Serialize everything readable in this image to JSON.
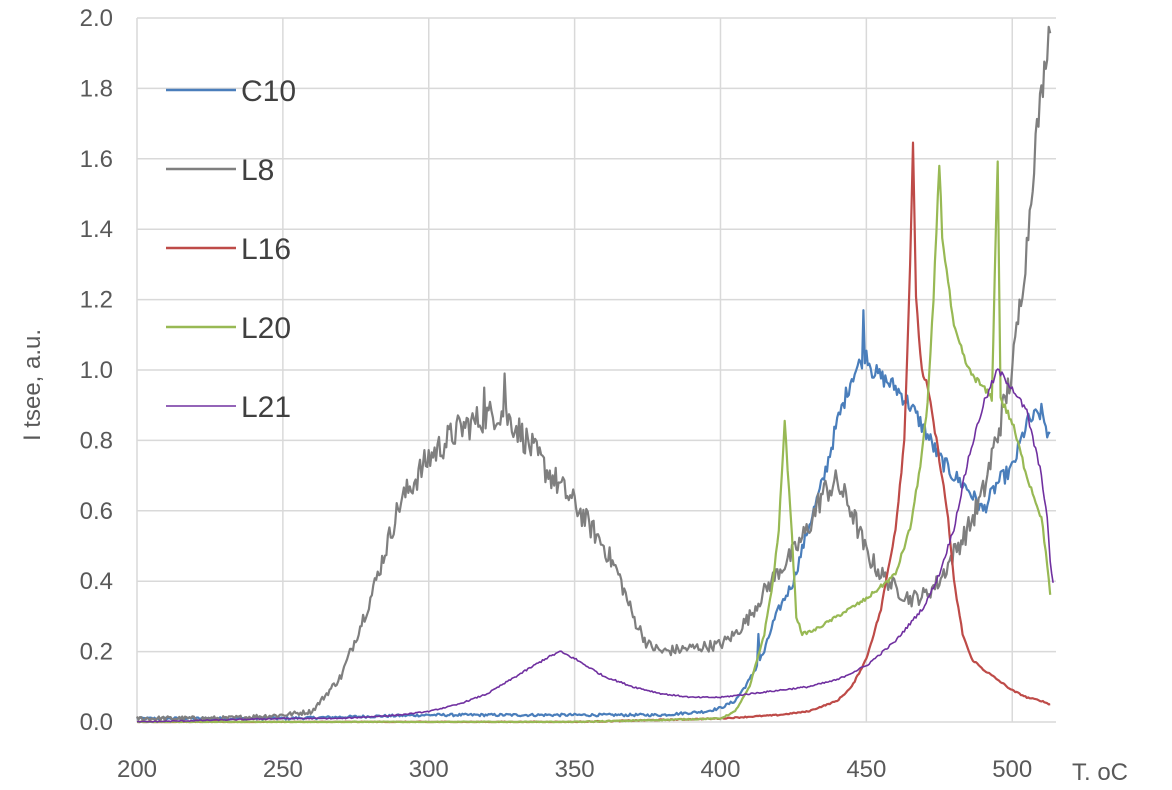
{
  "chart_data": {
    "type": "line",
    "title": "",
    "xlabel": "T. oC",
    "ylabel": "I tsee, a.u.",
    "xlim": [
      200,
      515
    ],
    "ylim": [
      0,
      2.0
    ],
    "x_ticks": [
      "200",
      "250",
      "300",
      "350",
      "400",
      "450",
      "500"
    ],
    "y_ticks": [
      "0.0",
      "0.2",
      "0.4",
      "0.6",
      "0.8",
      "1.0",
      "1.2",
      "1.4",
      "1.6",
      "1.8",
      "2.0"
    ],
    "grid": "vertical and horizontal major gridlines",
    "legend_position": "top-left",
    "series": [
      {
        "name": "C10",
        "color": "#4a7ebb",
        "points": [
          [
            200,
            0.01
          ],
          [
            250,
            0.01
          ],
          [
            300,
            0.02
          ],
          [
            350,
            0.02
          ],
          [
            380,
            0.02
          ],
          [
            395,
            0.03
          ],
          [
            400,
            0.04
          ],
          [
            405,
            0.06
          ],
          [
            410,
            0.12
          ],
          [
            415,
            0.2
          ],
          [
            418,
            0.28
          ],
          [
            420,
            0.32
          ],
          [
            425,
            0.4
          ],
          [
            430,
            0.55
          ],
          [
            435,
            0.68
          ],
          [
            440,
            0.85
          ],
          [
            445,
            0.98
          ],
          [
            450,
            1.05
          ],
          [
            452,
            1.0
          ],
          [
            455,
            0.98
          ],
          [
            460,
            0.95
          ],
          [
            465,
            0.9
          ],
          [
            470,
            0.83
          ],
          [
            475,
            0.75
          ],
          [
            480,
            0.7
          ],
          [
            485,
            0.66
          ],
          [
            490,
            0.6
          ],
          [
            495,
            0.68
          ],
          [
            500,
            0.72
          ],
          [
            505,
            0.85
          ],
          [
            510,
            0.88
          ],
          [
            513,
            0.8
          ]
        ],
        "spikes": [
          [
            449,
            1.17
          ],
          [
            413,
            0.25
          ]
        ]
      },
      {
        "name": "L8",
        "color": "#7f7f7f",
        "points": [
          [
            200,
            0.01
          ],
          [
            230,
            0.01
          ],
          [
            250,
            0.02
          ],
          [
            260,
            0.03
          ],
          [
            270,
            0.13
          ],
          [
            280,
            0.35
          ],
          [
            290,
            0.62
          ],
          [
            300,
            0.75
          ],
          [
            310,
            0.83
          ],
          [
            320,
            0.87
          ],
          [
            325,
            0.88
          ],
          [
            330,
            0.84
          ],
          [
            340,
            0.72
          ],
          [
            350,
            0.62
          ],
          [
            360,
            0.5
          ],
          [
            365,
            0.42
          ],
          [
            370,
            0.3
          ],
          [
            375,
            0.22
          ],
          [
            380,
            0.2
          ],
          [
            390,
            0.21
          ],
          [
            400,
            0.22
          ],
          [
            405,
            0.25
          ],
          [
            410,
            0.3
          ],
          [
            415,
            0.37
          ],
          [
            420,
            0.43
          ],
          [
            425,
            0.48
          ],
          [
            430,
            0.55
          ],
          [
            435,
            0.65
          ],
          [
            440,
            0.68
          ],
          [
            445,
            0.6
          ],
          [
            450,
            0.48
          ],
          [
            455,
            0.42
          ],
          [
            460,
            0.38
          ],
          [
            465,
            0.35
          ],
          [
            470,
            0.36
          ],
          [
            475,
            0.4
          ],
          [
            480,
            0.48
          ],
          [
            485,
            0.55
          ],
          [
            490,
            0.65
          ],
          [
            495,
            0.82
          ],
          [
            500,
            1.0
          ],
          [
            505,
            1.35
          ],
          [
            508,
            1.65
          ],
          [
            511,
            1.85
          ],
          [
            513,
            2.0
          ]
        ],
        "spikes": [
          [
            326,
            0.99
          ],
          [
            319,
            0.95
          ]
        ]
      },
      {
        "name": "L16",
        "color": "#be4b48",
        "points": [
          [
            200,
            0.0
          ],
          [
            300,
            0.0
          ],
          [
            350,
            0.0
          ],
          [
            400,
            0.01
          ],
          [
            420,
            0.02
          ],
          [
            430,
            0.03
          ],
          [
            440,
            0.06
          ],
          [
            445,
            0.1
          ],
          [
            450,
            0.18
          ],
          [
            455,
            0.32
          ],
          [
            460,
            0.55
          ],
          [
            463,
            0.8
          ],
          [
            465,
            1.3
          ],
          [
            466,
            1.65
          ],
          [
            467,
            1.2
          ],
          [
            469,
            1.0
          ],
          [
            471,
            0.95
          ],
          [
            473,
            0.85
          ],
          [
            475,
            0.75
          ],
          [
            478,
            0.58
          ],
          [
            480,
            0.4
          ],
          [
            483,
            0.25
          ],
          [
            486,
            0.18
          ],
          [
            490,
            0.15
          ],
          [
            495,
            0.12
          ],
          [
            500,
            0.09
          ],
          [
            505,
            0.07
          ],
          [
            510,
            0.06
          ],
          [
            513,
            0.05
          ]
        ],
        "spikes": []
      },
      {
        "name": "L20",
        "color": "#98b954",
        "points": [
          [
            200,
            0.0
          ],
          [
            300,
            0.0
          ],
          [
            350,
            0.0
          ],
          [
            400,
            0.01
          ],
          [
            405,
            0.03
          ],
          [
            410,
            0.1
          ],
          [
            415,
            0.25
          ],
          [
            418,
            0.4
          ],
          [
            420,
            0.55
          ],
          [
            422,
            0.85
          ],
          [
            424,
            0.6
          ],
          [
            426,
            0.3
          ],
          [
            428,
            0.25
          ],
          [
            432,
            0.26
          ],
          [
            440,
            0.3
          ],
          [
            450,
            0.35
          ],
          [
            460,
            0.42
          ],
          [
            465,
            0.55
          ],
          [
            468,
            0.7
          ],
          [
            471,
            0.9
          ],
          [
            473,
            1.2
          ],
          [
            475,
            1.59
          ],
          [
            476,
            1.38
          ],
          [
            478,
            1.25
          ],
          [
            480,
            1.12
          ],
          [
            485,
            1.0
          ],
          [
            490,
            0.95
          ],
          [
            493,
            0.92
          ],
          [
            495,
            1.6
          ],
          [
            496,
            0.92
          ],
          [
            500,
            0.85
          ],
          [
            505,
            0.7
          ],
          [
            510,
            0.58
          ],
          [
            512,
            0.45
          ],
          [
            513,
            0.36
          ]
        ],
        "spikes": []
      },
      {
        "name": "L21",
        "color": "#7030a0",
        "points": [
          [
            200,
            0.0
          ],
          [
            250,
            0.01
          ],
          [
            270,
            0.01
          ],
          [
            290,
            0.02
          ],
          [
            300,
            0.03
          ],
          [
            310,
            0.05
          ],
          [
            320,
            0.08
          ],
          [
            330,
            0.13
          ],
          [
            340,
            0.18
          ],
          [
            345,
            0.2
          ],
          [
            350,
            0.18
          ],
          [
            360,
            0.13
          ],
          [
            370,
            0.1
          ],
          [
            380,
            0.08
          ],
          [
            390,
            0.07
          ],
          [
            400,
            0.07
          ],
          [
            410,
            0.08
          ],
          [
            420,
            0.09
          ],
          [
            430,
            0.1
          ],
          [
            440,
            0.12
          ],
          [
            450,
            0.16
          ],
          [
            460,
            0.23
          ],
          [
            465,
            0.28
          ],
          [
            470,
            0.33
          ],
          [
            475,
            0.42
          ],
          [
            480,
            0.55
          ],
          [
            485,
            0.75
          ],
          [
            490,
            0.9
          ],
          [
            495,
            1.0
          ],
          [
            500,
            0.95
          ],
          [
            505,
            0.88
          ],
          [
            510,
            0.7
          ],
          [
            512,
            0.58
          ],
          [
            513,
            0.45
          ],
          [
            514,
            0.4
          ]
        ],
        "spikes": []
      }
    ]
  }
}
